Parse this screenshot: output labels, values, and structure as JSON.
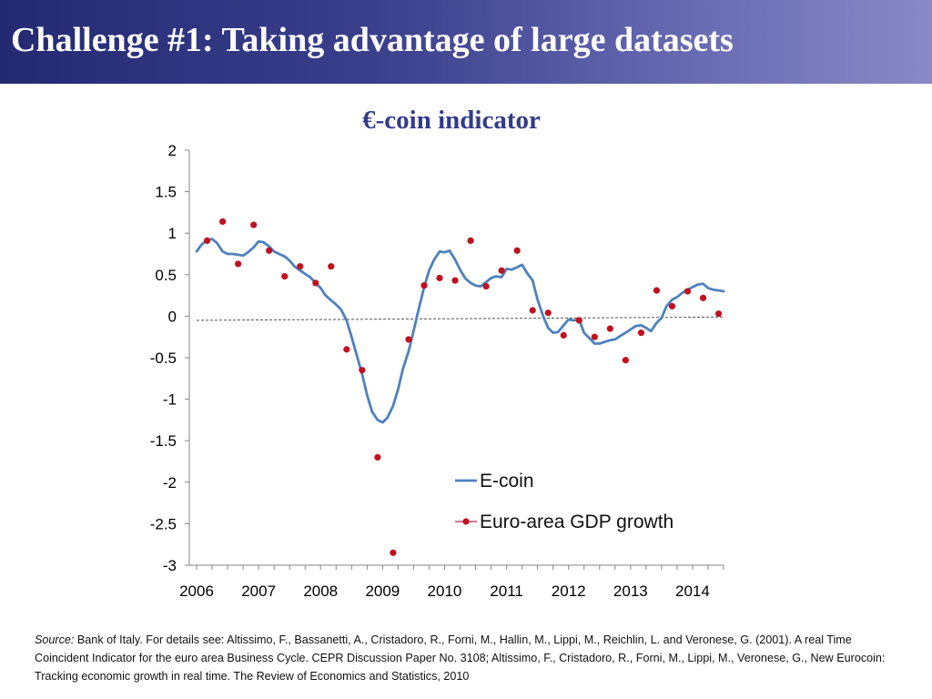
{
  "slide": {
    "title": "Challenge #1: Taking advantage of large datasets"
  },
  "source": {
    "label": "Source:",
    "text": "Bank of Italy. For details see: Altissimo, F., Bassanetti, A., Cristadoro, R., Forni, M., Hallin, M., Lippi, M., Reichlin, L. and Veronese, G. (2001). A real Time Coincident Indicator for the euro area Business Cycle. CEPR Discussion Paper No. 3108; Altissimo, F., Cristadoro, R., Forni, M., Lippi, M., Veronese, G., New Eurocoin: Tracking economic growth in real time. The Review of Economics and Statistics, 2010"
  },
  "colors": {
    "ecoin_line": "#4f81bd",
    "gdp_points": "#c0111f",
    "trend_line": "#555555",
    "axis": "#868686"
  },
  "chart_data": {
    "type": "line",
    "title": "€-coin indicator",
    "xlabel": "",
    "ylabel": "",
    "ylim": [
      -3,
      2
    ],
    "xlim": [
      2006,
      2014.5
    ],
    "yticks": [
      "2",
      "1.5",
      "1",
      "0.5",
      "0",
      "-0.5",
      "-1",
      "-1.5",
      "-2",
      "-2.5",
      "-3"
    ],
    "ytick_values": [
      2,
      1.5,
      1,
      0.5,
      0,
      -0.5,
      -1,
      -1.5,
      -2,
      -2.5,
      -3
    ],
    "xticks": [
      "2006",
      "2007",
      "2008",
      "2009",
      "2010",
      "2011",
      "2012",
      "2013",
      "2014"
    ],
    "xtick_values": [
      2006,
      2007,
      2008,
      2009,
      2010,
      2011,
      2012,
      2013,
      2014
    ],
    "grid": false,
    "legend": "bottom-right",
    "trend_line": {
      "x": [
        2006,
        2014.5
      ],
      "y": [
        -0.05,
        -0.01
      ]
    },
    "series": [
      {
        "name": "E-coin",
        "kind": "line",
        "x": [
          2006.0,
          2006.08,
          2006.17,
          2006.25,
          2006.33,
          2006.42,
          2006.5,
          2006.58,
          2006.67,
          2006.75,
          2006.83,
          2006.92,
          2007.0,
          2007.08,
          2007.17,
          2007.25,
          2007.33,
          2007.42,
          2007.5,
          2007.58,
          2007.67,
          2007.75,
          2007.83,
          2007.92,
          2008.0,
          2008.08,
          2008.17,
          2008.25,
          2008.33,
          2008.42,
          2008.5,
          2008.58,
          2008.67,
          2008.75,
          2008.83,
          2008.92,
          2009.0,
          2009.08,
          2009.17,
          2009.25,
          2009.33,
          2009.42,
          2009.5,
          2009.58,
          2009.67,
          2009.75,
          2009.83,
          2009.92,
          2010.0,
          2010.08,
          2010.17,
          2010.25,
          2010.33,
          2010.42,
          2010.5,
          2010.58,
          2010.67,
          2010.75,
          2010.83,
          2010.92,
          2011.0,
          2011.08,
          2011.17,
          2011.25,
          2011.33,
          2011.42,
          2011.5,
          2011.58,
          2011.67,
          2011.75,
          2011.83,
          2011.92,
          2012.0,
          2012.08,
          2012.17,
          2012.25,
          2012.33,
          2012.42,
          2012.5,
          2012.58,
          2012.67,
          2012.75,
          2012.83,
          2012.92,
          2013.0,
          2013.08,
          2013.17,
          2013.25,
          2013.33,
          2013.42,
          2013.5,
          2013.58,
          2013.67,
          2013.75,
          2013.83,
          2013.92,
          2014.0,
          2014.08,
          2014.17,
          2014.25,
          2014.33,
          2014.42,
          2014.5
        ],
        "y": [
          0.78,
          0.86,
          0.92,
          0.93,
          0.88,
          0.78,
          0.75,
          0.75,
          0.74,
          0.73,
          0.77,
          0.83,
          0.9,
          0.89,
          0.84,
          0.78,
          0.75,
          0.72,
          0.67,
          0.6,
          0.55,
          0.51,
          0.47,
          0.4,
          0.34,
          0.25,
          0.19,
          0.14,
          0.08,
          -0.05,
          -0.25,
          -0.46,
          -0.7,
          -0.95,
          -1.15,
          -1.25,
          -1.28,
          -1.22,
          -1.08,
          -0.88,
          -0.63,
          -0.42,
          -0.18,
          0.08,
          0.35,
          0.55,
          0.68,
          0.78,
          0.77,
          0.79,
          0.68,
          0.56,
          0.46,
          0.4,
          0.37,
          0.36,
          0.41,
          0.46,
          0.48,
          0.47,
          0.57,
          0.56,
          0.59,
          0.62,
          0.52,
          0.43,
          0.2,
          0.02,
          -0.14,
          -0.2,
          -0.19,
          -0.11,
          -0.04,
          -0.05,
          -0.04,
          -0.2,
          -0.26,
          -0.33,
          -0.33,
          -0.31,
          -0.29,
          -0.28,
          -0.24,
          -0.2,
          -0.16,
          -0.12,
          -0.11,
          -0.14,
          -0.18,
          -0.08,
          -0.02,
          0.12,
          0.2,
          0.23,
          0.28,
          0.32,
          0.35,
          0.38,
          0.39,
          0.34,
          0.32,
          0.31,
          0.3
        ]
      },
      {
        "name": "Euro-area GDP growth",
        "kind": "scatter",
        "x": [
          2006.17,
          2006.42,
          2006.67,
          2006.92,
          2007.17,
          2007.42,
          2007.67,
          2007.92,
          2008.17,
          2008.42,
          2008.67,
          2008.92,
          2009.17,
          2009.42,
          2009.67,
          2009.92,
          2010.17,
          2010.42,
          2010.67,
          2010.92,
          2011.17,
          2011.42,
          2011.67,
          2011.92,
          2012.17,
          2012.42,
          2012.67,
          2012.92,
          2013.17,
          2013.42,
          2013.67,
          2013.92,
          2014.17,
          2014.42
        ],
        "y": [
          0.91,
          1.14,
          0.63,
          1.1,
          0.79,
          0.48,
          0.6,
          0.4,
          0.6,
          -0.4,
          -0.65,
          -1.7,
          -2.85,
          -0.28,
          0.37,
          0.46,
          0.43,
          0.91,
          0.36,
          0.55,
          0.79,
          0.07,
          0.04,
          -0.23,
          -0.05,
          -0.25,
          -0.15,
          -0.53,
          -0.2,
          0.31,
          0.12,
          0.3,
          0.22,
          0.03
        ]
      }
    ]
  }
}
